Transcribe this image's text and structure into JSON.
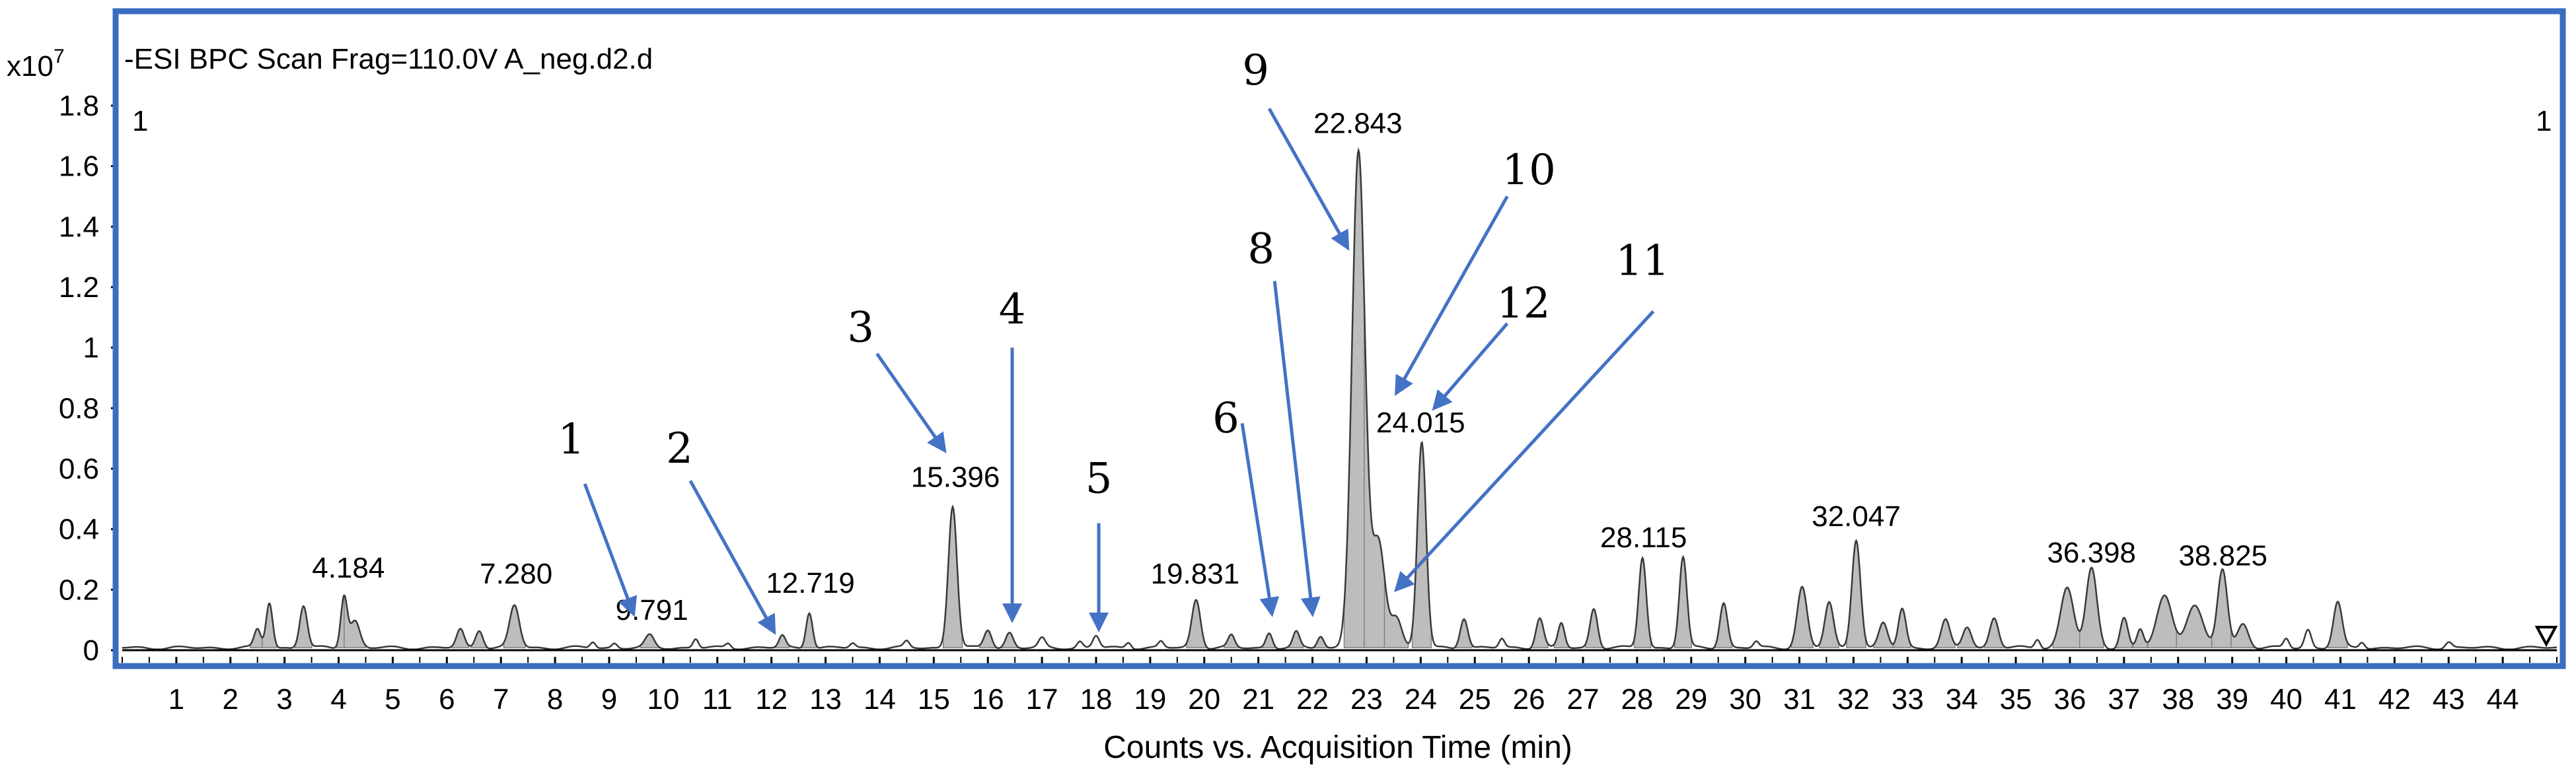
{
  "chart_data": {
    "type": "line",
    "title": "-ESI BPC Scan Frag=110.0V A_neg.d2.d",
    "y_exponent_label": "x10",
    "y_exponent": "7",
    "xlabel": "Counts vs. Acquisition Time (min)",
    "ylabel": "",
    "xlim": [
      0,
      45
    ],
    "ylim": [
      0,
      1.8
    ],
    "x_ticks": [
      1,
      2,
      3,
      4,
      5,
      6,
      7,
      8,
      9,
      10,
      11,
      12,
      13,
      14,
      15,
      16,
      17,
      18,
      19,
      20,
      21,
      22,
      23,
      24,
      25,
      26,
      27,
      28,
      29,
      30,
      31,
      32,
      33,
      34,
      35,
      36,
      37,
      38,
      39,
      40,
      41,
      42,
      43,
      44
    ],
    "y_ticks": [
      "0",
      "0.2",
      "0.4",
      "0.6",
      "0.8",
      "1",
      "1.2",
      "1.4",
      "1.6",
      "1.8"
    ],
    "grid": false,
    "cursor_left": "1",
    "cursor_right": "1",
    "baseline": 0.008,
    "peaks": [
      [
        2.5,
        0.06,
        0.06,
        1
      ],
      [
        2.72,
        0.15,
        0.06,
        1
      ],
      [
        3.35,
        0.14,
        0.07,
        1
      ],
      [
        4.1,
        0.17,
        0.06,
        1
      ],
      [
        4.3,
        0.09,
        0.09,
        1
      ],
      [
        6.25,
        0.06,
        0.07,
        1
      ],
      [
        6.6,
        0.06,
        0.07,
        1
      ],
      [
        7.25,
        0.14,
        0.09,
        1
      ],
      [
        8.7,
        0.02,
        0.05,
        0
      ],
      [
        9.1,
        0.015,
        0.05,
        0
      ],
      [
        9.75,
        0.04,
        0.08,
        1
      ],
      [
        10.6,
        0.03,
        0.05,
        0
      ],
      [
        11.2,
        0.015,
        0.05,
        0
      ],
      [
        12.2,
        0.04,
        0.06,
        1
      ],
      [
        12.7,
        0.12,
        0.06,
        1
      ],
      [
        13.5,
        0.015,
        0.05,
        0
      ],
      [
        14.5,
        0.02,
        0.05,
        0
      ],
      [
        15.35,
        0.47,
        0.08,
        1
      ],
      [
        16.0,
        0.06,
        0.07,
        1
      ],
      [
        16.4,
        0.05,
        0.07,
        1
      ],
      [
        17.0,
        0.03,
        0.06,
        0
      ],
      [
        17.7,
        0.02,
        0.05,
        0
      ],
      [
        18.0,
        0.04,
        0.06,
        0
      ],
      [
        18.6,
        0.02,
        0.05,
        0
      ],
      [
        19.2,
        0.02,
        0.05,
        0
      ],
      [
        19.85,
        0.16,
        0.08,
        1
      ],
      [
        20.5,
        0.04,
        0.06,
        1
      ],
      [
        21.2,
        0.05,
        0.06,
        1
      ],
      [
        21.7,
        0.05,
        0.06,
        1
      ],
      [
        22.15,
        0.04,
        0.06,
        1
      ],
      [
        22.85,
        1.64,
        0.12,
        1
      ],
      [
        23.22,
        0.35,
        0.12,
        1
      ],
      [
        23.55,
        0.1,
        0.1,
        1
      ],
      [
        24.02,
        0.68,
        0.08,
        1
      ],
      [
        24.8,
        0.1,
        0.07,
        1
      ],
      [
        25.5,
        0.03,
        0.05,
        0
      ],
      [
        26.2,
        0.1,
        0.07,
        1
      ],
      [
        26.6,
        0.08,
        0.06,
        1
      ],
      [
        27.2,
        0.13,
        0.07,
        1
      ],
      [
        28.1,
        0.3,
        0.07,
        1
      ],
      [
        28.85,
        0.3,
        0.07,
        1
      ],
      [
        29.6,
        0.15,
        0.07,
        1
      ],
      [
        30.2,
        0.02,
        0.05,
        0
      ],
      [
        31.05,
        0.2,
        0.09,
        1
      ],
      [
        31.55,
        0.15,
        0.08,
        1
      ],
      [
        32.05,
        0.36,
        0.08,
        1
      ],
      [
        32.55,
        0.08,
        0.08,
        1
      ],
      [
        32.9,
        0.13,
        0.07,
        1
      ],
      [
        33.7,
        0.09,
        0.08,
        1
      ],
      [
        34.1,
        0.07,
        0.08,
        1
      ],
      [
        34.6,
        0.1,
        0.08,
        1
      ],
      [
        35.4,
        0.03,
        0.05,
        0
      ],
      [
        35.95,
        0.2,
        0.12,
        1
      ],
      [
        36.4,
        0.26,
        0.1,
        1
      ],
      [
        37.0,
        0.1,
        0.07,
        1
      ],
      [
        37.3,
        0.06,
        0.06,
        1
      ],
      [
        37.75,
        0.17,
        0.14,
        1
      ],
      [
        38.3,
        0.14,
        0.15,
        1
      ],
      [
        38.82,
        0.26,
        0.09,
        1
      ],
      [
        39.2,
        0.08,
        0.1,
        1
      ],
      [
        40.0,
        0.03,
        0.05,
        0
      ],
      [
        40.4,
        0.06,
        0.06,
        0
      ],
      [
        40.95,
        0.15,
        0.08,
        1
      ],
      [
        41.4,
        0.02,
        0.05,
        0
      ],
      [
        43.0,
        0.02,
        0.06,
        0
      ]
    ],
    "peak_labels": [
      {
        "text": "4.184",
        "x": 4.18,
        "y": 0.24
      },
      {
        "text": "7.280",
        "x": 7.28,
        "y": 0.22
      },
      {
        "text": "9.791",
        "x": 9.79,
        "y": 0.1
      },
      {
        "text": "12.719",
        "x": 12.72,
        "y": 0.19
      },
      {
        "text": "15.396",
        "x": 15.4,
        "y": 0.54
      },
      {
        "text": "19.831",
        "x": 19.83,
        "y": 0.22
      },
      {
        "text": "22.843",
        "x": 22.84,
        "y": 1.71
      },
      {
        "text": "24.015",
        "x": 24.0,
        "y": 0.72
      },
      {
        "text": "28.115",
        "x": 28.12,
        "y": 0.34
      },
      {
        "text": "32.047",
        "x": 32.05,
        "y": 0.41
      },
      {
        "text": "36.398",
        "x": 36.4,
        "y": 0.29
      },
      {
        "text": "38.825",
        "x": 38.83,
        "y": 0.28
      }
    ],
    "annotations": [
      {
        "text": "1",
        "lx": 8.3,
        "ly": 0.65,
        "tx": 8.55,
        "ty": 0.55,
        "hx": 9.45,
        "hy": 0.12
      },
      {
        "text": "2",
        "lx": 10.3,
        "ly": 0.62,
        "tx": 10.5,
        "ty": 0.56,
        "hx": 12.05,
        "hy": 0.06
      },
      {
        "text": "3",
        "lx": 13.65,
        "ly": 1.02,
        "tx": 13.95,
        "ty": 0.98,
        "hx": 15.2,
        "hy": 0.66
      },
      {
        "text": "4",
        "lx": 16.45,
        "ly": 1.08,
        "tx": 16.45,
        "ty": 1.0,
        "hx": 16.45,
        "hy": 0.1
      },
      {
        "text": "5",
        "lx": 18.05,
        "ly": 0.52,
        "tx": 18.05,
        "ty": 0.42,
        "hx": 18.05,
        "hy": 0.07
      },
      {
        "text": "6",
        "lx": 20.4,
        "ly": 0.72,
        "tx": 20.7,
        "ty": 0.75,
        "hx": 21.25,
        "hy": 0.12
      },
      {
        "text": "8",
        "lx": 21.05,
        "ly": 1.28,
        "tx": 21.3,
        "ty": 1.22,
        "hx": 22.0,
        "hy": 0.12
      },
      {
        "text": "9",
        "lx": 20.95,
        "ly": 1.87,
        "tx": 21.2,
        "ty": 1.79,
        "hx": 22.65,
        "hy": 1.33
      },
      {
        "text": "10",
        "lx": 26.0,
        "ly": 1.54,
        "tx": 25.6,
        "ty": 1.5,
        "hx": 23.55,
        "hy": 0.85
      },
      {
        "text": "11",
        "lx": 28.1,
        "ly": 1.24,
        "tx": 28.3,
        "ty": 1.12,
        "hx": 23.55,
        "hy": 0.2
      },
      {
        "text": "12",
        "lx": 25.9,
        "ly": 1.1,
        "tx": 25.6,
        "ty": 1.08,
        "hx": 24.25,
        "hy": 0.8
      }
    ],
    "colors": {
      "frame": "#3a6dc0",
      "arrow": "#4472c4",
      "fill": "#bdbdbd",
      "line": "#3a3a3a"
    }
  }
}
